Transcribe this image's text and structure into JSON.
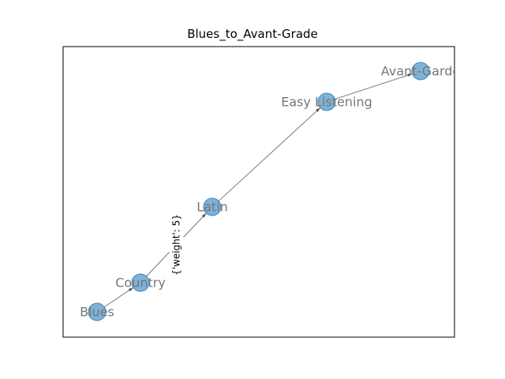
{
  "title": "Blues_to_Avant-Grade",
  "colors": {
    "node_fill": "#7fb2d8",
    "node_stroke": "#3f86bd",
    "edge": "#777777",
    "label": "#777777",
    "frame": "#000000"
  },
  "nodes": [
    {
      "id": "Blues",
      "label": "Blues"
    },
    {
      "id": "Country",
      "label": "Country"
    },
    {
      "id": "Latin",
      "label": "Latin"
    },
    {
      "id": "Easy Listening",
      "label": "Easy Listening"
    },
    {
      "id": "Avant-Garde",
      "label": "Avant-Garde"
    }
  ],
  "edges": [
    {
      "source": "Blues",
      "target": "Country",
      "label": ""
    },
    {
      "source": "Country",
      "target": "Latin",
      "label": "{'weight': 5}"
    },
    {
      "source": "Latin",
      "target": "Easy Listening",
      "label": ""
    },
    {
      "source": "Easy Listening",
      "target": "Avant-Garde",
      "label": ""
    }
  ]
}
